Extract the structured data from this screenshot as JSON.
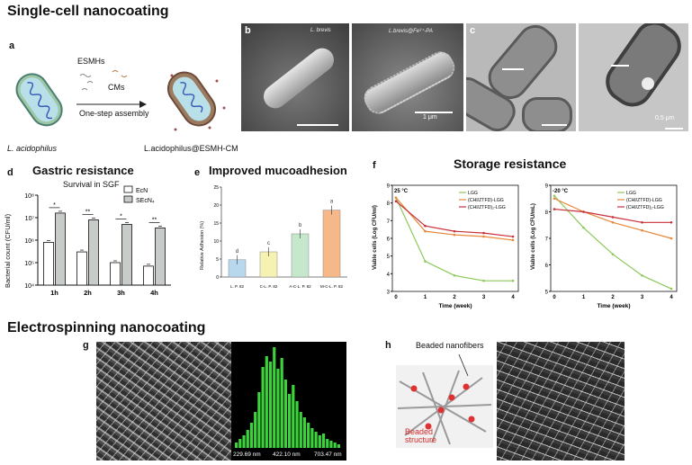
{
  "titles": {
    "single_cell": "Single-cell nanocoating",
    "electrospinning": "Electrospinning nanocoating"
  },
  "panels": {
    "a": {
      "letter": "a",
      "esmhs": "ESMHs",
      "cms": "CMs",
      "assembly": "One-step assembly",
      "left_label": "L. acidophilus",
      "right_label": "L.acidophilus@ESMH-CM"
    },
    "b": {
      "letter": "b",
      "img1_label": "L. brevis",
      "img2_label": "L.brevis@Fe³⁺-PA",
      "scale": "1 μm"
    },
    "c": {
      "letter": "c",
      "scale": "0.5 μm"
    },
    "d": {
      "letter": "d",
      "heading": "Gastric resistance",
      "subtitle": "Survival in SGF",
      "ylabel": "Bacterial count (CFU/ml)",
      "legend": [
        "EcN",
        "SEcN₄"
      ],
      "yticks": [
        "10⁸",
        "10⁷",
        "10⁶",
        "10⁵",
        "10⁴"
      ],
      "sig": [
        "*",
        "**",
        "*",
        "**"
      ]
    },
    "e": {
      "letter": "e",
      "heading": "Improved mucoadhesion",
      "ylabel": "Relative Adhesion (%)",
      "yticks": [
        "0",
        "5",
        "10",
        "15",
        "20",
        "25"
      ],
      "letters": [
        "d",
        "c",
        "b",
        "a"
      ]
    },
    "f": {
      "letter": "f",
      "heading": "Storage resistance",
      "xlabel": "Time (week)",
      "ylabel1": "Viable cells (Log CFU/ml)",
      "ylabel2": "Viable cells (Log CFU/mL)",
      "temp1": "25 °C",
      "temp2": "-20 °C",
      "legend1": [
        "LGG",
        "(CHI/ZTFD)-LGG",
        "(CHI/ZTFD)₂-LGG"
      ],
      "legend2": [
        "LGG",
        "(CHI/ZTFD)-LGG",
        "(CHI/ZTFD)₂-LGG"
      ],
      "xticks": [
        "0",
        "1",
        "2",
        "3",
        "4"
      ],
      "yticks1": [
        "3",
        "4",
        "5",
        "6",
        "7",
        "8",
        "9"
      ],
      "yticks2": [
        "5",
        "6",
        "7",
        "8",
        "9"
      ]
    },
    "g": {
      "letter": "g",
      "hist_labels": [
        "229.69 nm",
        "422.10 nm",
        "703.47 nm"
      ]
    },
    "h": {
      "letter": "h",
      "beaded_nanofibers": "Beaded nanofibers",
      "beaded_structure": "Beaded\nstructure"
    }
  },
  "colors": {
    "gray_bar": "#c8ccc8",
    "green_hist": "#3bd23b",
    "series_green": "#8cc95a",
    "series_orange": "#e8873a",
    "series_red": "#c9303a",
    "bar_e": [
      "#b8d8ee",
      "#f6f3b2",
      "#c5e8cd",
      "#f7b889"
    ]
  },
  "chart_data": [
    {
      "type": "bar",
      "id": "d",
      "subtitle": "Survival in SGF",
      "ylabel": "Bacterial count (CFU/ml)",
      "scale": "log",
      "ylim": [
        10000,
        100000000
      ],
      "categories": [
        "1h",
        "2h",
        "3h",
        "4h"
      ],
      "series": [
        {
          "name": "EcN",
          "values": [
            800000,
            300000,
            100000,
            70000
          ]
        },
        {
          "name": "SEcN₄",
          "values": [
            16000000,
            8000000,
            5000000,
            3500000
          ]
        }
      ]
    },
    {
      "type": "bar",
      "id": "e",
      "ylabel": "Relative Adhesion (%)",
      "ylim": [
        0,
        25
      ],
      "categories": [
        "L. P. 82",
        "C-L. P. 82",
        "A-C-L. P. 82",
        "M-C-L. P. 82"
      ],
      "values": [
        4.8,
        7.0,
        12.0,
        18.6
      ]
    },
    {
      "type": "line",
      "id": "f1",
      "title": "25 °C",
      "xlabel": "Time (week)",
      "ylabel": "Viable cells (Log CFU/ml)",
      "ylim": [
        3,
        9
      ],
      "x": [
        0,
        1,
        2,
        3,
        4
      ],
      "series": [
        {
          "name": "LGG",
          "values": [
            8.3,
            4.7,
            3.9,
            3.6,
            3.6
          ]
        },
        {
          "name": "(CHI/ZTFD)-LGG",
          "values": [
            8.3,
            6.4,
            6.2,
            6.1,
            5.9
          ]
        },
        {
          "name": "(CHI/ZTFD)₂-LGG",
          "values": [
            8.1,
            6.7,
            6.4,
            6.3,
            6.1
          ]
        }
      ]
    },
    {
      "type": "line",
      "id": "f2",
      "title": "-20 °C",
      "xlabel": "Time (week)",
      "ylabel": "Viable cells (Log CFU/mL)",
      "ylim": [
        5,
        9
      ],
      "x": [
        0,
        1,
        2,
        3,
        4
      ],
      "series": [
        {
          "name": "LGG",
          "values": [
            8.6,
            7.4,
            6.4,
            5.6,
            5.1
          ]
        },
        {
          "name": "(CHI/ZTFD)-LGG",
          "values": [
            8.5,
            8.0,
            7.6,
            7.3,
            7.0
          ]
        },
        {
          "name": "(CHI/ZTFD)₂-LGG",
          "values": [
            8.1,
            8.0,
            7.8,
            7.6,
            7.6
          ]
        }
      ]
    },
    {
      "type": "bar",
      "id": "g-hist",
      "x_ticks": [
        "229.69 nm",
        "422.10 nm",
        "703.47 nm"
      ]
    }
  ]
}
